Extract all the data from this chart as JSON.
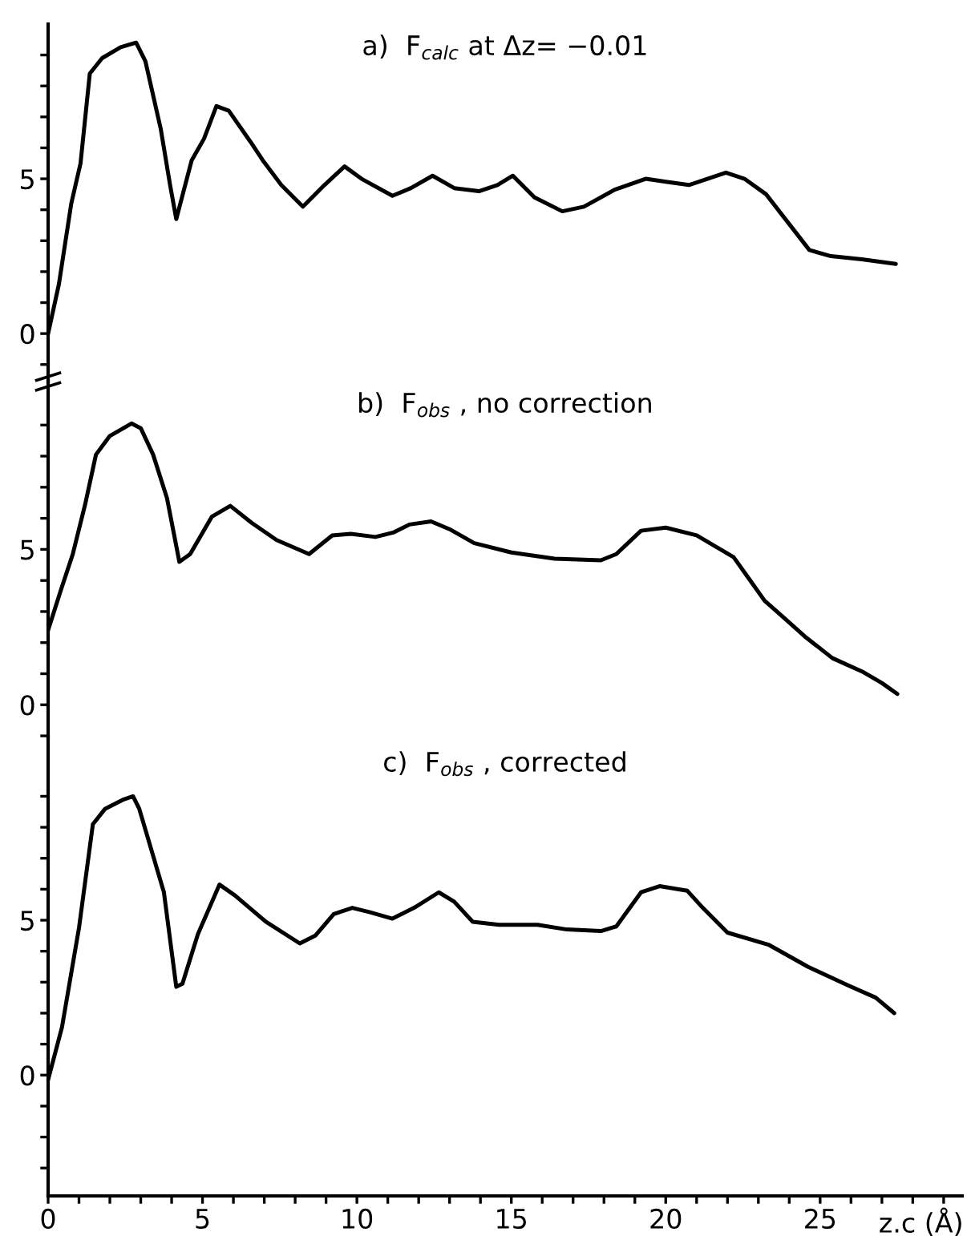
{
  "chart_data": [
    {
      "type": "line",
      "title": "a)  F$_{calc}$ at Δz= −0.01",
      "tick_labels": "y",
      "xticks": [
        0,
        5,
        10,
        15,
        20,
        25
      ],
      "ylim": [
        -1.55,
        10.0
      ],
      "yticks": [
        {
          "value": -1,
          "label": null
        },
        0,
        {
          "value": 1,
          "label": null
        },
        {
          "value": 2,
          "label": null
        },
        {
          "value": 3,
          "label": null
        },
        {
          "value": 4,
          "label": null
        },
        5,
        {
          "value": 6,
          "label": null
        },
        {
          "value": 7,
          "label": null
        },
        {
          "value": 8,
          "label": null
        },
        {
          "value": 9,
          "label": null
        }
      ],
      "x": [
        0,
        0.35,
        0.75,
        1.05,
        1.35,
        1.75,
        2.35,
        2.85,
        3.15,
        3.65,
        3.95,
        4.15,
        4.65,
        5.05,
        5.45,
        5.85,
        6.55,
        6.95,
        7.55,
        8.25,
        8.95,
        9.6,
        10.15,
        11.15,
        11.75,
        12.45,
        13.15,
        13.95,
        14.55,
        15.05,
        15.75,
        16.65,
        17.35,
        18.35,
        19.35,
        20.05,
        20.75,
        21.95,
        22.55,
        23.25,
        23.95,
        24.65,
        25.35,
        26.35,
        27.45
      ],
      "series": [
        {
          "color": "#000000",
          "values": [
            0,
            1.6,
            4.2,
            5.5,
            8.4,
            8.9,
            9.25,
            9.4,
            8.8,
            6.6,
            4.8,
            3.7,
            5.6,
            6.3,
            7.35,
            7.2,
            6.2,
            5.6,
            4.8,
            4.1,
            4.8,
            5.4,
            5.0,
            4.45,
            4.7,
            5.1,
            4.7,
            4.6,
            4.8,
            5.1,
            4.4,
            3.95,
            4.1,
            4.65,
            5.0,
            4.9,
            4.8,
            5.2,
            5.0,
            4.5,
            3.6,
            2.7,
            2.5,
            2.4,
            2.25
          ]
        }
      ]
    },
    {
      "type": "line",
      "title": "b)  F$_{obs}$ , no correction",
      "tick_labels": "y",
      "xticks": [
        0,
        5,
        10,
        15,
        20,
        25
      ],
      "ylim": [
        -1.05,
        10.4
      ],
      "yticks": [
        {
          "value": -1,
          "label": null
        },
        0,
        {
          "value": 1,
          "label": null
        },
        {
          "value": 2,
          "label": null
        },
        {
          "value": 3,
          "label": null
        },
        {
          "value": 4,
          "label": null
        },
        5,
        {
          "value": 6,
          "label": null
        },
        {
          "value": 7,
          "label": null
        },
        {
          "value": 8,
          "label": null
        },
        {
          "value": 9,
          "label": null
        }
      ],
      "x": [
        0,
        0.4,
        0.8,
        1.2,
        1.55,
        2.0,
        2.7,
        3.0,
        3.4,
        3.85,
        4.25,
        4.6,
        5.3,
        5.9,
        6.6,
        7.4,
        8.45,
        9.2,
        9.8,
        10.6,
        11.2,
        11.7,
        12.4,
        13.0,
        13.8,
        15.0,
        16.4,
        17.9,
        18.4,
        19.2,
        20.0,
        21.0,
        22.2,
        22.7,
        23.2,
        24.0,
        24.5,
        25.4,
        26.4,
        27.0,
        27.5
      ],
      "series": [
        {
          "color": "#000000",
          "values": [
            2.4,
            3.65,
            4.85,
            6.45,
            8.05,
            8.65,
            9.05,
            8.9,
            8.05,
            6.65,
            4.6,
            4.85,
            6.05,
            6.4,
            5.85,
            5.3,
            4.85,
            5.45,
            5.5,
            5.4,
            5.55,
            5.8,
            5.9,
            5.65,
            5.2,
            4.9,
            4.7,
            4.65,
            4.85,
            5.6,
            5.7,
            5.45,
            4.75,
            4.05,
            3.35,
            2.65,
            2.2,
            1.5,
            1.05,
            0.7,
            0.35
          ]
        }
      ]
    },
    {
      "type": "line",
      "title": "c)  F$_{obs}$ , corrected",
      "xlabel": "z.c (Å)",
      "xlim": [
        0,
        29.6
      ],
      "ylim": [
        -3.9,
        10.9
      ],
      "xticks": [
        0,
        {
          "value": 1,
          "label": null
        },
        {
          "value": 2,
          "label": null
        },
        {
          "value": 3,
          "label": null
        },
        {
          "value": 4,
          "label": null
        },
        5,
        {
          "value": 6,
          "label": null
        },
        {
          "value": 7,
          "label": null
        },
        {
          "value": 8,
          "label": null
        },
        {
          "value": 9,
          "label": null
        },
        10,
        {
          "value": 11,
          "label": null
        },
        {
          "value": 12,
          "label": null
        },
        {
          "value": 13,
          "label": null
        },
        {
          "value": 14,
          "label": null
        },
        15,
        {
          "value": 16,
          "label": null
        },
        {
          "value": 17,
          "label": null
        },
        {
          "value": 18,
          "label": null
        },
        {
          "value": 19,
          "label": null
        },
        20,
        {
          "value": 21,
          "label": null
        },
        {
          "value": 22,
          "label": null
        },
        {
          "value": 23,
          "label": null
        },
        {
          "value": 24,
          "label": null
        },
        25,
        {
          "value": 26,
          "label": null
        },
        {
          "value": 27,
          "label": null
        },
        {
          "value": 28,
          "label": null
        },
        {
          "value": 29,
          "label": null
        }
      ],
      "yticks": [
        {
          "value": -3,
          "label": null
        },
        {
          "value": -2,
          "label": null
        },
        {
          "value": -1,
          "label": null
        },
        0,
        {
          "value": 1,
          "label": null
        },
        {
          "value": 2,
          "label": null
        },
        {
          "value": 3,
          "label": null
        },
        {
          "value": 4,
          "label": null
        },
        5,
        {
          "value": 6,
          "label": null
        },
        {
          "value": 7,
          "label": null
        },
        {
          "value": 8,
          "label": null
        },
        {
          "value": 9,
          "label": null
        }
      ],
      "x": [
        0,
        0.45,
        1.0,
        1.45,
        1.85,
        2.45,
        2.75,
        2.95,
        3.75,
        4.15,
        4.35,
        4.85,
        5.55,
        6.05,
        7.05,
        8.15,
        8.65,
        9.25,
        9.85,
        10.45,
        11.15,
        11.85,
        12.65,
        13.15,
        13.75,
        14.6,
        15.85,
        16.8,
        17.9,
        18.4,
        19.2,
        19.8,
        20.7,
        21.2,
        22.0,
        23.35,
        24.6,
        25.9,
        26.8,
        27.4
      ],
      "series": [
        {
          "color": "#000000",
          "values": [
            -0.15,
            1.55,
            4.75,
            8.1,
            8.6,
            8.9,
            9.0,
            8.6,
            5.9,
            2.85,
            2.95,
            4.55,
            6.15,
            5.8,
            4.95,
            4.25,
            4.5,
            5.2,
            5.4,
            5.25,
            5.05,
            5.4,
            5.9,
            5.6,
            4.95,
            4.85,
            4.85,
            4.7,
            4.65,
            4.8,
            5.9,
            6.1,
            5.95,
            5.4,
            4.6,
            4.2,
            3.5,
            2.9,
            2.5,
            2.0
          ]
        }
      ]
    }
  ]
}
